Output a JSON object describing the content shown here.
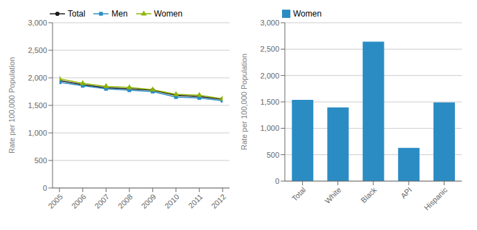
{
  "chart_data": [
    {
      "type": "line",
      "x": [
        2005,
        2006,
        2007,
        2008,
        2009,
        2010,
        2011,
        2012
      ],
      "xlim": [
        2005,
        2012
      ],
      "xticks": [
        2005,
        2006,
        2007,
        2008,
        2009,
        2010,
        2011,
        2012
      ],
      "ylabel": "Rate per 100,000 Population",
      "ylim": [
        0,
        3000
      ],
      "yticks": [
        0,
        500,
        {
          "value": 1000,
          "label": "1,000"
        },
        {
          "value": 1500,
          "label": "1,500"
        },
        {
          "value": 2000,
          "label": "2,000"
        },
        {
          "value": 2500,
          "label": "2,500"
        },
        {
          "value": 3000,
          "label": "3,000"
        }
      ],
      "grid": true,
      "legend": "top",
      "series": [
        {
          "name": "Total",
          "color": "#1a1a1a",
          "marker": "circle",
          "values": [
            1950,
            1875,
            1820,
            1800,
            1775,
            1680,
            1660,
            1610
          ]
        },
        {
          "name": "Men",
          "color": "#2B8CC4",
          "marker": "square",
          "values": [
            1920,
            1855,
            1800,
            1775,
            1750,
            1650,
            1635,
            1585
          ]
        },
        {
          "name": "Women",
          "color": "#8DB500",
          "marker": "triangle",
          "values": [
            1980,
            1900,
            1845,
            1825,
            1785,
            1700,
            1685,
            1620
          ]
        }
      ]
    },
    {
      "type": "bar",
      "categories": [
        "Total",
        "White",
        "Black",
        "API",
        "Hispanic"
      ],
      "ylabel": "Rate per 100,000 Population",
      "ylim": [
        0,
        3000
      ],
      "yticks": [
        0,
        500,
        {
          "value": 1000,
          "label": "1,000"
        },
        {
          "value": 1500,
          "label": "1,500"
        },
        {
          "value": 2000,
          "label": "2,000"
        },
        {
          "value": 2500,
          "label": "2,500"
        },
        {
          "value": 3000,
          "label": "3,000"
        }
      ],
      "grid": true,
      "legend": "top",
      "series": [
        {
          "name": "Women",
          "color": "#2B8CC4",
          "values": [
            1540,
            1395,
            2640,
            630,
            1490
          ]
        }
      ]
    }
  ]
}
